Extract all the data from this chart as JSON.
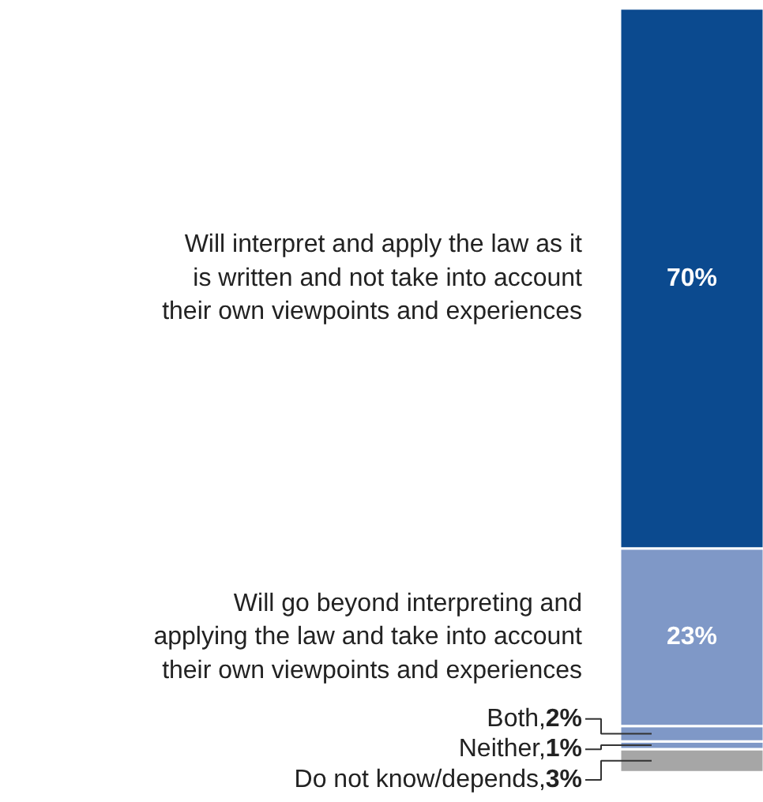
{
  "chart_data": {
    "type": "bar",
    "stacked": true,
    "categories": [
      null
    ],
    "series": [
      {
        "name": "Do not know/depends,",
        "color": "#a6a6a6",
        "values": [
          3
        ],
        "value_labels": [
          "3%"
        ]
      },
      {
        "name": "Neither,",
        "color": "#7f98c7",
        "values": [
          1
        ],
        "value_labels": [
          "1%"
        ]
      },
      {
        "name": "Both,",
        "color": "#7f98c7",
        "values": [
          2
        ],
        "value_labels": [
          "2%"
        ]
      },
      {
        "name": "Will go beyond interpreting and applying the law and take into account their own viewpoints and experiences",
        "color": "#7f98c7",
        "values": [
          23
        ],
        "value_labels": [
          "23%"
        ]
      },
      {
        "name": "Will interpret and apply the law as it is written and not take into account their own viewpoints and experiences",
        "color": "#0b4a8f",
        "values": [
          70
        ],
        "value_labels": [
          "70%"
        ]
      }
    ]
  }
}
